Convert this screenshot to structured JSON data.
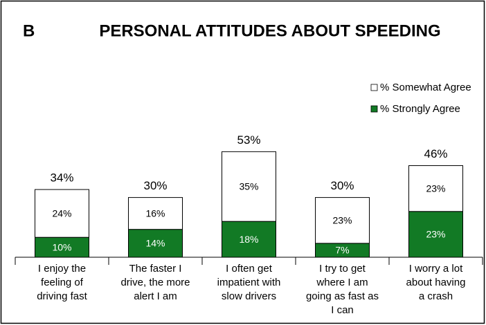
{
  "chart_data": {
    "type": "stacked_bar",
    "panel_label": "B",
    "title": "PERSONAL ATTITUDES ABOUT SPEEDING",
    "categories": [
      [
        "I enjoy the",
        "feeling of",
        "driving fast"
      ],
      [
        "The faster I",
        "drive, the more",
        "alert I am"
      ],
      [
        "I often get",
        "impatient with",
        "slow drivers"
      ],
      [
        "I try to get",
        "where I am",
        "going as fast as",
        "I can"
      ],
      [
        "I worry a lot",
        "about having",
        "a crash"
      ]
    ],
    "series": [
      {
        "name": "% Strongly Agree",
        "color": "#127a25",
        "values": [
          10,
          14,
          18,
          7,
          23
        ],
        "value_labels": [
          "10%",
          "14%",
          "18%",
          "7%",
          "23%"
        ]
      },
      {
        "name": "% Somewhat Agree",
        "color": "#ffffff",
        "values": [
          24,
          16,
          35,
          23,
          23
        ],
        "value_labels": [
          "24%",
          "16%",
          "35%",
          "23%",
          "23%"
        ]
      }
    ],
    "totals": [
      34,
      30,
      53,
      30,
      46
    ],
    "total_labels": [
      "34%",
      "30%",
      "53%",
      "30%",
      "46%"
    ]
  }
}
